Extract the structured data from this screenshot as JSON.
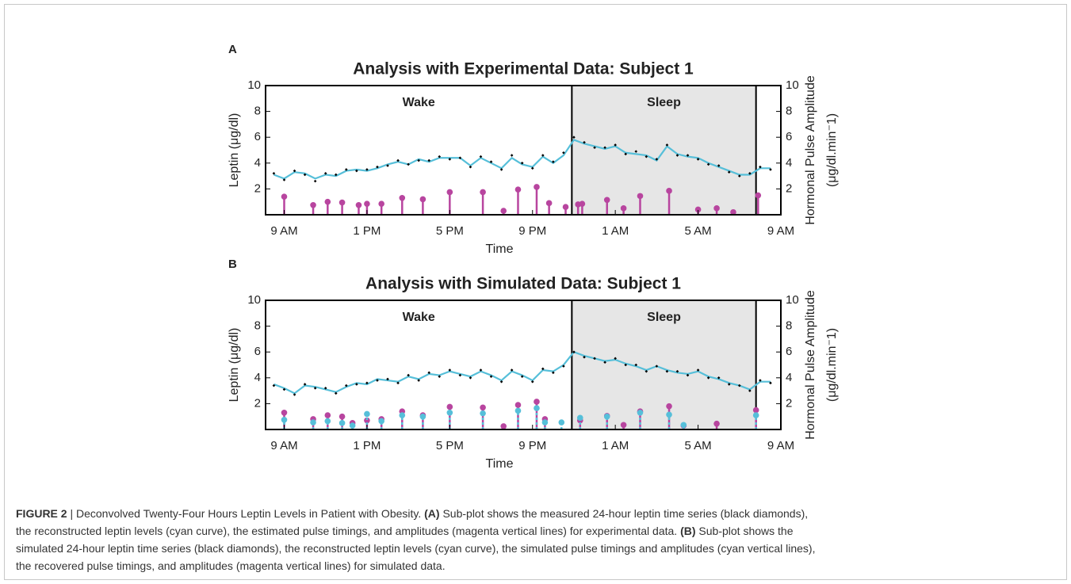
{
  "chart_data": [
    {
      "type": "line",
      "panel": "A",
      "title": "Analysis with Experimental Data: Subject 1",
      "xlabel": "Time",
      "ylabel": "Leptin (μg/dl)",
      "y2label": [
        "Hormonal Pulse Amplitude",
        "(μg/dl.min⁻1)"
      ],
      "xlim": [
        -0.9,
        24
      ],
      "xticks": [
        {
          "value": 0,
          "label": "9 AM"
        },
        {
          "value": 4,
          "label": "1 PM"
        },
        {
          "value": 8,
          "label": "5 PM"
        },
        {
          "value": 12,
          "label": "9 PM"
        },
        {
          "value": 16,
          "label": "1 AM"
        },
        {
          "value": 20,
          "label": "5 AM"
        },
        {
          "value": 24,
          "label": "9 AM"
        }
      ],
      "ylim": [
        0,
        10
      ],
      "yticks": [
        2,
        4,
        6,
        8,
        10
      ],
      "y2lim": [
        0,
        10
      ],
      "y2ticks": [
        2,
        4,
        6,
        8,
        10
      ],
      "regions": [
        {
          "label": "Wake",
          "start": -0.9,
          "end": 13.9
        },
        {
          "label": "Sleep",
          "start": 13.9,
          "end": 22.8,
          "color": "#e6e6e6"
        }
      ],
      "x": [
        -0.5,
        0,
        0.5,
        1,
        1.5,
        2,
        2.5,
        3,
        3.5,
        4,
        4.5,
        5,
        5.5,
        6,
        6.5,
        7,
        7.5,
        8,
        8.5,
        9,
        9.5,
        10,
        10.5,
        11,
        11.5,
        12,
        12.5,
        13,
        13.5,
        14,
        14.5,
        15,
        15.5,
        16,
        16.5,
        17,
        17.5,
        18,
        18.5,
        19,
        19.5,
        20,
        20.5,
        21,
        21.5,
        22,
        22.5,
        23,
        23.5
      ],
      "series": [
        {
          "style": "line",
          "color": "#56bfd9",
          "values": [
            3.1,
            2.8,
            3.3,
            3.2,
            2.8,
            3.1,
            3.0,
            3.4,
            3.5,
            3.4,
            3.6,
            3.9,
            4.1,
            3.9,
            4.3,
            4.1,
            4.4,
            4.4,
            4.4,
            3.8,
            4.4,
            4.0,
            3.6,
            4.4,
            3.9,
            3.7,
            4.5,
            4.0,
            4.6,
            5.8,
            5.5,
            5.3,
            5.1,
            5.3,
            4.8,
            4.7,
            4.6,
            4.2,
            5.3,
            4.7,
            4.5,
            4.4,
            4.0,
            3.7,
            3.4,
            3.1,
            3.1,
            3.6,
            3.6
          ]
        },
        {
          "style": "markers",
          "color": "#000000",
          "values": [
            3.2,
            2.7,
            3.4,
            3.1,
            2.6,
            3.2,
            3.1,
            3.5,
            3.4,
            3.5,
            3.7,
            3.8,
            4.2,
            3.9,
            4.2,
            4.2,
            4.5,
            4.3,
            4.4,
            3.7,
            4.5,
            4.1,
            3.5,
            4.6,
            4.0,
            3.6,
            4.6,
            4.1,
            4.8,
            6.0,
            5.6,
            5.2,
            5.2,
            5.4,
            4.7,
            4.9,
            4.5,
            4.3,
            5.4,
            4.6,
            4.6,
            4.3,
            3.9,
            3.8,
            3.3,
            3.0,
            3.2,
            3.7,
            3.5
          ]
        },
        {
          "style": "stem",
          "axis": "y2",
          "color": "#b8459f",
          "x": [
            0.0,
            1.4,
            2.1,
            2.8,
            3.6,
            4.0,
            4.7,
            5.7,
            6.7,
            8.0,
            9.6,
            10.6,
            11.3,
            12.2,
            12.8,
            13.6,
            14.2,
            14.4,
            15.6,
            16.4,
            17.2,
            18.6,
            20.0,
            20.9,
            21.7,
            22.9
          ],
          "values": [
            1.4,
            0.75,
            1.0,
            0.95,
            0.75,
            0.85,
            0.85,
            1.3,
            1.2,
            1.75,
            1.75,
            0.3,
            1.95,
            2.15,
            0.9,
            0.6,
            0.8,
            0.85,
            1.15,
            0.5,
            1.45,
            1.85,
            0.4,
            0.5,
            0.2,
            1.5
          ]
        }
      ]
    },
    {
      "type": "line",
      "panel": "B",
      "title": "Analysis with Simulated Data: Subject 1",
      "xlabel": "Time",
      "ylabel": "Leptin (μg/dl)",
      "y2label": [
        "Hormonal Pulse Amplitude",
        "(μg/dl.min⁻1)"
      ],
      "xlim": [
        -0.9,
        24
      ],
      "xticks": [
        {
          "value": 0,
          "label": "9 AM"
        },
        {
          "value": 4,
          "label": "1 PM"
        },
        {
          "value": 8,
          "label": "5 PM"
        },
        {
          "value": 12,
          "label": "9 PM"
        },
        {
          "value": 16,
          "label": "1 AM"
        },
        {
          "value": 20,
          "label": "5 AM"
        },
        {
          "value": 24,
          "label": "9 AM"
        }
      ],
      "ylim": [
        0,
        10
      ],
      "yticks": [
        2,
        4,
        6,
        8,
        10
      ],
      "y2lim": [
        0,
        10
      ],
      "y2ticks": [
        2,
        4,
        6,
        8,
        10
      ],
      "regions": [
        {
          "label": "Wake",
          "start": -0.9,
          "end": 13.9
        },
        {
          "label": "Sleep",
          "start": 13.9,
          "end": 22.8,
          "color": "#e6e6e6"
        }
      ],
      "x": [
        -0.5,
        0,
        0.5,
        1,
        1.5,
        2,
        2.5,
        3,
        3.5,
        4,
        4.5,
        5,
        5.5,
        6,
        6.5,
        7,
        7.5,
        8,
        8.5,
        9,
        9.5,
        10,
        10.5,
        11,
        11.5,
        12,
        12.5,
        13,
        13.5,
        14,
        14.5,
        15,
        15.5,
        16,
        16.5,
        17,
        17.5,
        18,
        18.5,
        19,
        19.5,
        20,
        20.5,
        21,
        21.5,
        22,
        22.5,
        23,
        23.5
      ],
      "series": [
        {
          "style": "line",
          "color": "#56bfd9",
          "values": [
            3.5,
            3.2,
            2.8,
            3.4,
            3.3,
            3.1,
            2.9,
            3.3,
            3.6,
            3.5,
            3.9,
            3.8,
            3.7,
            4.1,
            3.9,
            4.3,
            4.2,
            4.5,
            4.3,
            4.1,
            4.5,
            4.2,
            3.8,
            4.5,
            4.2,
            3.8,
            4.6,
            4.5,
            5.0,
            6.0,
            5.7,
            5.5,
            5.3,
            5.4,
            5.1,
            4.9,
            4.6,
            4.9,
            4.6,
            4.4,
            4.3,
            4.5,
            4.1,
            3.9,
            3.6,
            3.4,
            3.1,
            3.7,
            3.7
          ]
        },
        {
          "style": "markers",
          "color": "#000000",
          "values": [
            3.4,
            3.1,
            2.7,
            3.5,
            3.2,
            3.2,
            2.8,
            3.4,
            3.5,
            3.6,
            3.8,
            3.9,
            3.6,
            4.2,
            3.8,
            4.4,
            4.1,
            4.6,
            4.2,
            4.0,
            4.6,
            4.1,
            3.7,
            4.6,
            4.1,
            3.7,
            4.7,
            4.4,
            4.9,
            6.0,
            5.6,
            5.5,
            5.2,
            5.5,
            5.0,
            5.0,
            4.5,
            4.9,
            4.5,
            4.5,
            4.2,
            4.6,
            4.0,
            4.0,
            3.5,
            3.4,
            3.0,
            3.8,
            3.6
          ]
        },
        {
          "style": "stem",
          "axis": "y2",
          "color": "#b8459f",
          "x": [
            0.0,
            1.4,
            2.1,
            2.8,
            3.3,
            4.0,
            4.7,
            5.7,
            6.7,
            8.0,
            9.6,
            10.6,
            11.3,
            12.2,
            12.6,
            14.3,
            15.6,
            16.4,
            17.2,
            18.6,
            19.3,
            20.9,
            22.8
          ],
          "values": [
            1.3,
            0.8,
            1.1,
            1.0,
            0.5,
            0.7,
            0.8,
            1.4,
            1.1,
            1.75,
            1.7,
            0.25,
            1.9,
            2.15,
            0.8,
            0.7,
            1.05,
            0.35,
            1.4,
            1.8,
            0.3,
            0.45,
            1.5
          ]
        },
        {
          "style": "stem",
          "axis": "y2",
          "dashed": true,
          "color": "#56bfd9",
          "x": [
            0.0,
            1.4,
            2.1,
            2.8,
            3.3,
            4.0,
            4.7,
            5.7,
            6.7,
            8.0,
            9.6,
            11.3,
            12.2,
            12.6,
            13.4,
            14.3,
            15.6,
            17.2,
            18.6,
            19.3,
            22.8
          ],
          "values": [
            0.75,
            0.55,
            0.65,
            0.5,
            0.3,
            1.2,
            0.65,
            1.1,
            1.0,
            1.3,
            1.25,
            1.45,
            1.65,
            0.55,
            0.55,
            0.9,
            1.0,
            1.3,
            1.15,
            0.35,
            1.1
          ]
        }
      ]
    }
  ],
  "caption": {
    "lines": [
      [
        {
          "text": "FIGURE 2",
          "bold": true
        },
        {
          "text": " | Deconvolved Twenty-Four Hours Leptin Levels in Patient with Obesity. "
        },
        {
          "text": "(A)",
          "bold": true
        },
        {
          "text": " Sub-plot shows the measured 24-hour leptin time series (black diamonds),"
        }
      ],
      [
        {
          "text": "the reconstructed leptin levels (cyan curve), the estimated pulse timings, and amplitudes (magenta vertical lines) for experimental data. "
        },
        {
          "text": "(B)",
          "bold": true
        },
        {
          "text": " Sub-plot shows the"
        }
      ],
      [
        {
          "text": "simulated 24-hour leptin time series (black diamonds), the reconstructed leptin levels (cyan curve), the simulated pulse timings and amplitudes (cyan vertical lines),"
        }
      ],
      [
        {
          "text": "the recovered pulse timings, and amplitudes (magenta vertical lines) for simulated data."
        }
      ]
    ]
  }
}
